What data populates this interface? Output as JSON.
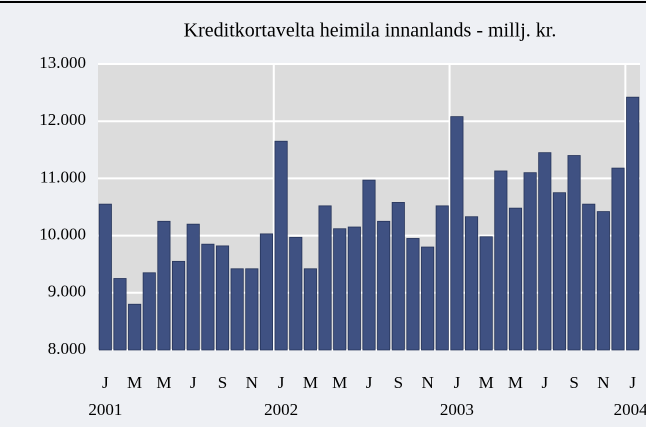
{
  "chart_data": {
    "type": "bar",
    "title": "Kreditkortavelta heimila innanlands - millj. kr.",
    "categories": [
      "J",
      null,
      "M",
      null,
      "M",
      null,
      "J",
      null,
      "S",
      null,
      "N",
      null,
      "J",
      null,
      "M",
      null,
      "M",
      null,
      "J",
      null,
      "S",
      null,
      "N",
      null,
      "J",
      null,
      "M",
      null,
      "M",
      null,
      "J",
      null,
      "S",
      null,
      "N",
      null,
      "J"
    ],
    "year_labels": [
      "2001",
      "2002",
      "2003",
      "2004"
    ],
    "values": [
      10550,
      9250,
      8800,
      9350,
      10250,
      9550,
      10200,
      9850,
      9820,
      9420,
      9420,
      10030,
      11650,
      9970,
      9420,
      10520,
      10120,
      10150,
      10970,
      10250,
      10580,
      9950,
      9800,
      10520,
      12080,
      10330,
      9980,
      11130,
      10480,
      11100,
      11450,
      10750,
      11400,
      10550,
      10420,
      11180,
      12420
    ],
    "color": "#3f5182",
    "ylim": [
      8000,
      13000
    ],
    "yticks": [
      {
        "value": 8000,
        "label": "8.000"
      },
      {
        "value": 9000,
        "label": "9.000"
      },
      {
        "value": 10000,
        "label": "10.000"
      },
      {
        "value": 11000,
        "label": "11.000"
      },
      {
        "value": 12000,
        "label": "12.000"
      },
      {
        "value": 13000,
        "label": "13.000"
      }
    ],
    "grid": true
  }
}
